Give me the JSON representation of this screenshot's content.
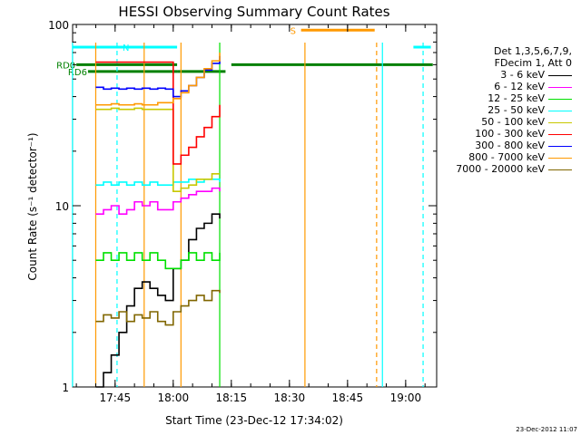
{
  "chart_data": {
    "type": "line",
    "title": "HESSI Observing Summary Count Rates",
    "xlabel": "Start Time (23-Dec-12 17:34:02)",
    "ylabel": "Count Rate (s⁻¹ detector⁻¹)",
    "y_scale": "log",
    "ylim": [
      1,
      100
    ],
    "y_ticks": [
      {
        "value": 1,
        "label": "1"
      },
      {
        "value": 10,
        "label": "10"
      },
      {
        "value": 100,
        "label": "100"
      }
    ],
    "xlim": [
      "17:34:02",
      "19:08:00"
    ],
    "x_ticks": [
      "17:45",
      "18:00",
      "18:15",
      "18:30",
      "18:45",
      "19:00"
    ],
    "grid": false,
    "legend": {
      "placement": "right",
      "header": [
        "Det 1,3,5,6,7,9,",
        "FDecim 1, Att 0"
      ],
      "entries": [
        {
          "label": "3 - 6 keV",
          "color": "#000000"
        },
        {
          "label": "6 - 12 keV",
          "color": "#ff00ff"
        },
        {
          "label": "12 - 25 keV",
          "color": "#00e000"
        },
        {
          "label": "25 - 50 keV",
          "color": "#00ffff"
        },
        {
          "label": "50 - 100 keV",
          "color": "#c8c800"
        },
        {
          "label": "100 - 300 keV",
          "color": "#ff0000"
        },
        {
          "label": "300 - 800 keV",
          "color": "#0000ff"
        },
        {
          "label": "800 - 7000 keV",
          "color": "#ff9900"
        },
        {
          "label": "7000 - 20000 keV",
          "color": "#806600"
        }
      ]
    },
    "flag_bars": [
      {
        "label": "N",
        "color": "#00ffff",
        "y": 75,
        "segments": [
          [
            "17:34:02",
            "17:47:30"
          ],
          [
            "17:47:30",
            "18:01:00"
          ],
          [
            "19:02:00",
            "19:06:30"
          ]
        ]
      },
      {
        "label": "S",
        "color": "#ff9900",
        "y": 93,
        "segments": [
          [
            "18:33:00",
            "18:52:00"
          ]
        ]
      },
      {
        "label": "RD0",
        "color": "#008000",
        "y": 60,
        "segments": [
          [
            "17:35:00",
            "18:01:00"
          ],
          [
            "18:15:00",
            "19:07:00"
          ]
        ]
      },
      {
        "label": "RD6",
        "color": "#008000",
        "y": 55,
        "segments": [
          [
            "17:38:00",
            "18:01:00"
          ],
          [
            "18:01:00",
            "18:13:30"
          ]
        ]
      }
    ],
    "vertical_lines": [
      {
        "time": "17:34:00",
        "color": "#00ffff",
        "style": "solid"
      },
      {
        "time": "17:45:30",
        "color": "#00ffff",
        "style": "dashed"
      },
      {
        "time": "18:52:30",
        "color": "#ff9900",
        "style": "dashed"
      },
      {
        "time": "18:54:00",
        "color": "#00ffff",
        "style": "solid"
      },
      {
        "time": "19:04:30",
        "color": "#00ffff",
        "style": "dashed"
      },
      {
        "time": "18:34:00",
        "color": "#ff9900",
        "style": "solid"
      },
      {
        "time": "18:12:00",
        "color": "#00e000",
        "style": "solid"
      },
      {
        "time": "17:40:00",
        "color": "#ff9900",
        "style": "solid"
      },
      {
        "time": "17:52:30",
        "color": "#ff9900",
        "style": "solid"
      },
      {
        "time": "18:02:00",
        "color": "#ff9900",
        "style": "solid"
      }
    ],
    "series": [
      {
        "name": "3 - 6 keV",
        "color": "#000000",
        "x": [
          "17:40",
          "17:42",
          "17:44",
          "17:46",
          "17:48",
          "17:50",
          "17:52",
          "17:54",
          "17:56",
          "17:58",
          "18:00",
          "18:02",
          "18:04",
          "18:06",
          "18:08",
          "18:10",
          "18:12"
        ],
        "y": [
          1.0,
          1.2,
          1.5,
          2.0,
          2.8,
          3.5,
          3.8,
          3.5,
          3.2,
          3.0,
          4.5,
          5.0,
          6.5,
          7.5,
          8.0,
          9.0,
          8.5
        ]
      },
      {
        "name": "6 - 12 keV",
        "color": "#ff00ff",
        "x": [
          "17:40",
          "17:42",
          "17:44",
          "17:46",
          "17:48",
          "17:50",
          "17:52",
          "17:54",
          "17:56",
          "17:58",
          "18:00",
          "18:02",
          "18:04",
          "18:06",
          "18:08",
          "18:10",
          "18:12"
        ],
        "y": [
          9.0,
          9.5,
          10.0,
          9.0,
          9.5,
          10.5,
          10.0,
          10.5,
          9.5,
          9.5,
          10.5,
          11.0,
          11.5,
          12.0,
          12.0,
          12.5,
          12.0
        ]
      },
      {
        "name": "12 - 25 keV",
        "color": "#00e000",
        "x": [
          "17:40",
          "17:42",
          "17:44",
          "17:46",
          "17:48",
          "17:50",
          "17:52",
          "17:54",
          "17:56",
          "17:58",
          "18:00",
          "18:02",
          "18:04",
          "18:06",
          "18:08",
          "18:10",
          "18:12"
        ],
        "y": [
          5.0,
          5.5,
          5.0,
          5.5,
          5.0,
          5.5,
          5.0,
          5.5,
          5.0,
          4.5,
          4.5,
          5.0,
          5.5,
          5.0,
          5.5,
          5.0,
          5.5
        ]
      },
      {
        "name": "25 - 50 keV",
        "color": "#00ffff",
        "x": [
          "17:40",
          "17:42",
          "17:44",
          "17:46",
          "17:48",
          "17:50",
          "17:52",
          "17:54",
          "17:56",
          "17:58",
          "18:00",
          "18:02",
          "18:04",
          "18:06",
          "18:08",
          "18:10",
          "18:12"
        ],
        "y": [
          13.0,
          13.5,
          13.0,
          13.5,
          13.0,
          13.5,
          13.0,
          13.5,
          13.0,
          13.0,
          13.5,
          13.5,
          14.0,
          13.5,
          14.0,
          14.0,
          13.5
        ]
      },
      {
        "name": "50 - 100 keV",
        "color": "#c8c800",
        "x": [
          "17:40",
          "17:42",
          "17:44",
          "17:46",
          "17:48",
          "17:50",
          "17:52",
          "17:54",
          "17:56",
          "17:58",
          "18:00",
          "18:02",
          "18:04",
          "18:06",
          "18:08",
          "18:10",
          "18:12"
        ],
        "y": [
          34.0,
          34.0,
          34.5,
          34.0,
          34.0,
          34.5,
          34.0,
          34.0,
          34.0,
          34.0,
          12.0,
          12.5,
          13.0,
          14.0,
          14.0,
          15.0,
          15.0
        ]
      },
      {
        "name": "100 - 300 keV",
        "color": "#ff0000",
        "x": [
          "17:40",
          "17:42",
          "17:44",
          "17:46",
          "17:48",
          "17:50",
          "17:52",
          "17:54",
          "17:56",
          "17:58",
          "18:00",
          "18:02",
          "18:04",
          "18:06",
          "18:08",
          "18:10",
          "18:12"
        ],
        "y": [
          62.0,
          62.0,
          62.0,
          62.0,
          62.0,
          62.0,
          62.0,
          62.0,
          62.0,
          62.0,
          17.0,
          19.0,
          21.0,
          24.0,
          27.0,
          31.0,
          36.0
        ]
      },
      {
        "name": "300 - 800 keV",
        "color": "#0000ff",
        "x": [
          "17:40",
          "17:42",
          "17:44",
          "17:46",
          "17:48",
          "17:50",
          "17:52",
          "17:54",
          "17:56",
          "17:58",
          "18:00",
          "18:02",
          "18:04",
          "18:06",
          "18:08",
          "18:10",
          "18:12"
        ],
        "y": [
          45.0,
          44.0,
          44.5,
          44.0,
          44.5,
          44.0,
          44.5,
          44.0,
          44.5,
          44.0,
          40.0,
          43.0,
          46.0,
          51.0,
          56.0,
          61.0,
          67.0
        ]
      },
      {
        "name": "800 - 7000 keV",
        "color": "#ff9900",
        "x": [
          "17:40",
          "17:42",
          "17:44",
          "17:46",
          "17:48",
          "17:50",
          "17:52",
          "17:54",
          "17:56",
          "17:58",
          "18:00",
          "18:02",
          "18:04",
          "18:06",
          "18:08",
          "18:10",
          "18:12"
        ],
        "y": [
          36.0,
          36.0,
          36.5,
          36.0,
          36.0,
          36.5,
          36.0,
          36.0,
          37.0,
          37.0,
          39.0,
          42.0,
          46.0,
          51.0,
          57.0,
          63.0,
          70.0
        ]
      },
      {
        "name": "7000 - 20000 keV",
        "color": "#806600",
        "x": [
          "17:40",
          "17:42",
          "17:44",
          "17:46",
          "17:48",
          "17:50",
          "17:52",
          "17:54",
          "17:56",
          "17:58",
          "18:00",
          "18:02",
          "18:04",
          "18:06",
          "18:08",
          "18:10",
          "18:12"
        ],
        "y": [
          2.3,
          2.5,
          2.4,
          2.6,
          2.3,
          2.5,
          2.4,
          2.6,
          2.3,
          2.2,
          2.6,
          2.8,
          3.0,
          3.2,
          3.0,
          3.4,
          3.3
        ]
      }
    ]
  },
  "footer": "23-Dec-2012 11:07"
}
